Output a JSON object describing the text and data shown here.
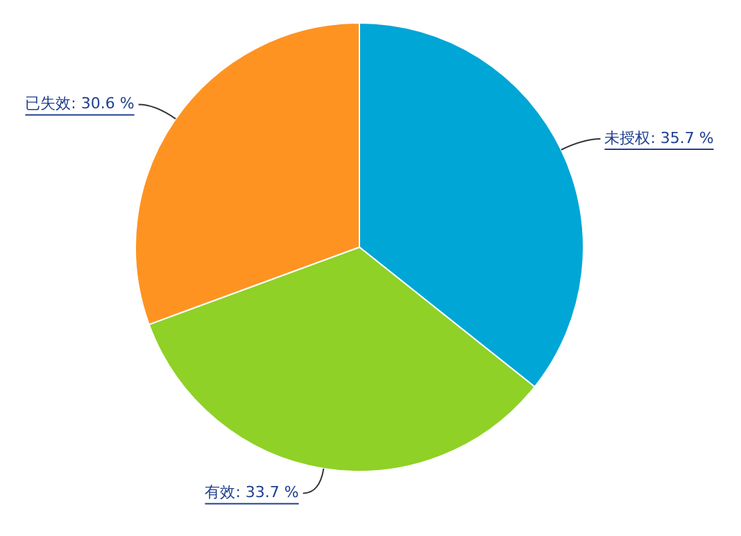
{
  "chart_data": {
    "type": "pie",
    "categories": [
      "未授权",
      "有效",
      "已失效"
    ],
    "values": [
      35.7,
      33.7,
      30.6
    ],
    "value_labels": [
      "35.7 %",
      "33.7 %",
      "30.6 %"
    ],
    "colors": [
      "#00a6d6",
      "#8fd126",
      "#ff9322"
    ],
    "legend": false
  }
}
